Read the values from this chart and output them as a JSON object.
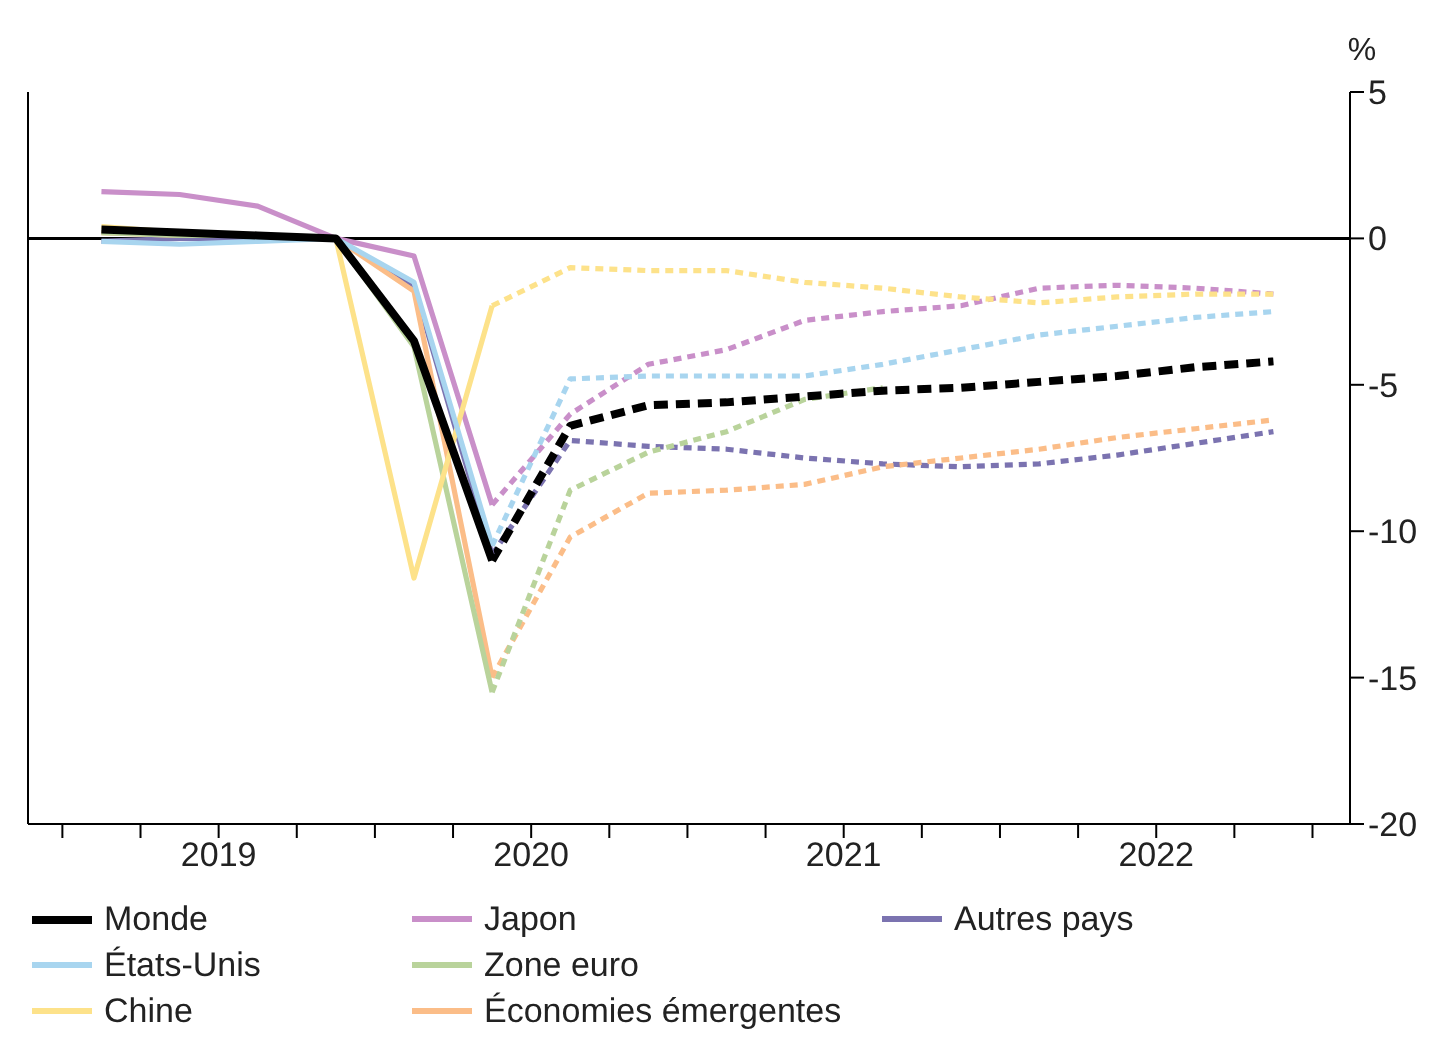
{
  "chart_data": {
    "type": "line",
    "ylabel": "%",
    "x": [
      2019.125,
      2019.375,
      2019.625,
      2019.875,
      2020.125,
      2020.375,
      2020.625,
      2020.875,
      2021.125,
      2021.375,
      2021.625,
      2021.875,
      2022.125,
      2022.375,
      2022.625,
      2022.875
    ],
    "xlim": [
      2018.89,
      2023.12
    ],
    "xticks": [
      {
        "value": 2019,
        "label": null
      },
      {
        "value": 2019.25,
        "label": null
      },
      {
        "value": 2019.5,
        "label": "2019"
      },
      {
        "value": 2019.75,
        "label": null
      },
      {
        "value": 2020,
        "label": null
      },
      {
        "value": 2020.25,
        "label": null
      },
      {
        "value": 2020.5,
        "label": "2020"
      },
      {
        "value": 2020.75,
        "label": null
      },
      {
        "value": 2021,
        "label": null
      },
      {
        "value": 2021.25,
        "label": null
      },
      {
        "value": 2021.5,
        "label": "2021"
      },
      {
        "value": 2021.75,
        "label": null
      },
      {
        "value": 2022,
        "label": null
      },
      {
        "value": 2022.25,
        "label": null
      },
      {
        "value": 2022.5,
        "label": "2022"
      },
      {
        "value": 2022.75,
        "label": null
      },
      {
        "value": 2023,
        "label": null
      }
    ],
    "ylim": [
      -20,
      5
    ],
    "yticks": [
      5,
      0,
      -5,
      -10,
      -15,
      -20
    ],
    "grid": false,
    "legend": "bottom",
    "marker": "none",
    "ref_lines": [
      {
        "axis": "y",
        "value": 0,
        "color": "#000000",
        "line_style": "solid"
      }
    ],
    "series": [
      {
        "name": "Monde",
        "color": "#000000",
        "line_style": "solid",
        "values": [
          0.3,
          0.2,
          0.1,
          0,
          -3.5,
          -11.0,
          null,
          null,
          null,
          null,
          null,
          null,
          null,
          null,
          null,
          null
        ]
      },
      {
        "name": "États-Unis",
        "color": "#a8d5ef",
        "line_style": "solid",
        "values": [
          -0.1,
          -0.2,
          -0.1,
          0,
          -1.5,
          -10.5,
          null,
          null,
          null,
          null,
          null,
          null,
          null,
          null,
          null,
          null
        ]
      },
      {
        "name": "Chine",
        "color": "#fde28a",
        "line_style": "solid",
        "values": [
          0.4,
          0.2,
          0.1,
          0,
          -11.6,
          -2.3,
          null,
          null,
          null,
          null,
          null,
          null,
          null,
          null,
          null,
          null
        ]
      },
      {
        "name": "Japon",
        "color": "#c98fc9",
        "line_style": "solid",
        "values": [
          1.6,
          1.5,
          1.1,
          0,
          -0.6,
          -9.1,
          null,
          null,
          null,
          null,
          null,
          null,
          null,
          null,
          null,
          null
        ]
      },
      {
        "name": "Zone euro",
        "color": "#b9d39b",
        "line_style": "solid",
        "values": [
          0.2,
          0.1,
          0.1,
          0,
          -3.7,
          -15.5,
          null,
          null,
          null,
          null,
          null,
          null,
          null,
          null,
          null,
          null
        ]
      },
      {
        "name": "Économies émergentes",
        "color": "#fbbd88",
        "line_style": "solid",
        "values": [
          0.2,
          0.1,
          0.1,
          0,
          -1.8,
          -15.0,
          null,
          null,
          null,
          null,
          null,
          null,
          null,
          null,
          null,
          null
        ]
      },
      {
        "name": "Autres pays",
        "color": "#7b73b0",
        "line_style": "solid",
        "values": [
          -0.1,
          0,
          0,
          0,
          -1.6,
          -10.8,
          null,
          null,
          null,
          null,
          null,
          null,
          null,
          null,
          null,
          null
        ]
      },
      {
        "color": "#000000",
        "line_style": "dashed",
        "values": [
          null,
          null,
          null,
          null,
          null,
          -11.0,
          -6.4,
          -5.7,
          -5.6,
          -5.4,
          -5.2,
          -5.1,
          -4.9,
          -4.7,
          -4.4,
          -4.2
        ]
      },
      {
        "color": "#a8d5ef",
        "line_style": "dashed",
        "values": [
          null,
          null,
          null,
          null,
          null,
          -10.5,
          -4.8,
          -4.7,
          -4.7,
          -4.7,
          -4.3,
          -3.8,
          -3.3,
          -3.0,
          -2.7,
          -2.5
        ]
      },
      {
        "color": "#fde28a",
        "line_style": "dashed",
        "values": [
          null,
          null,
          null,
          null,
          null,
          -2.3,
          -1.0,
          -1.1,
          -1.1,
          -1.5,
          -1.7,
          -2.0,
          -2.2,
          -2.0,
          -1.9,
          -1.9
        ]
      },
      {
        "color": "#c98fc9",
        "line_style": "dashed",
        "values": [
          null,
          null,
          null,
          null,
          null,
          -9.1,
          -6.0,
          -4.3,
          -3.8,
          -2.8,
          -2.5,
          -2.3,
          -1.7,
          -1.6,
          -1.7,
          -1.9
        ]
      },
      {
        "color": "#b9d39b",
        "line_style": "dashed",
        "values": [
          null,
          null,
          null,
          null,
          null,
          -15.5,
          -8.6,
          -7.3,
          -6.6,
          -5.5,
          -5.1,
          null,
          null,
          null,
          null,
          null
        ]
      },
      {
        "color": "#fbbd88",
        "line_style": "dashed",
        "values": [
          null,
          null,
          null,
          null,
          null,
          -15.0,
          -10.2,
          -8.7,
          -8.6,
          -8.4,
          -7.8,
          -7.5,
          -7.2,
          -6.8,
          -6.5,
          -6.2
        ]
      },
      {
        "color": "#7b73b0",
        "line_style": "dashed",
        "values": [
          null,
          null,
          null,
          null,
          null,
          -10.8,
          -6.9,
          -7.1,
          -7.2,
          -7.5,
          -7.7,
          -7.8,
          -7.7,
          -7.4,
          -7.0,
          -6.6
        ]
      }
    ]
  }
}
